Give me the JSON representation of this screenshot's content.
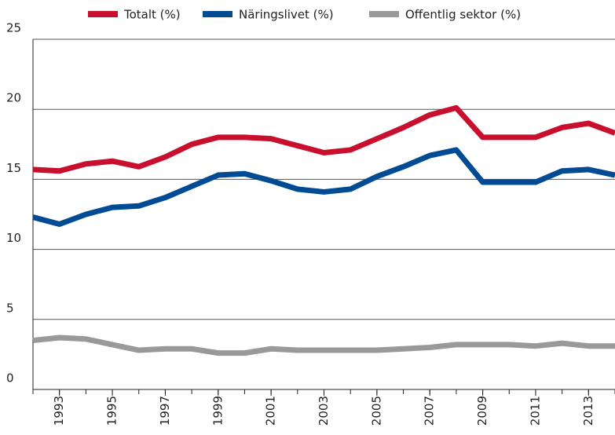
{
  "chart_data": {
    "type": "line",
    "x": [
      1992,
      1993,
      1994,
      1995,
      1996,
      1997,
      1998,
      1999,
      2000,
      2001,
      2002,
      2003,
      2004,
      2005,
      2006,
      2007,
      2008,
      2009,
      2010,
      2011,
      2012,
      2013,
      2014
    ],
    "series": [
      {
        "name": "Totalt (%)",
        "color": "#c8102e",
        "values": [
          15.7,
          15.6,
          16.1,
          16.3,
          15.9,
          16.6,
          17.5,
          18.0,
          18.0,
          17.9,
          17.4,
          16.9,
          17.1,
          17.9,
          18.7,
          19.6,
          20.1,
          18.0,
          18.0,
          18.0,
          18.7,
          19.0,
          18.3
        ]
      },
      {
        "name": "Näringslivet (%)",
        "color": "#004b93",
        "values": [
          12.3,
          11.8,
          12.5,
          13.0,
          13.1,
          13.7,
          14.5,
          15.3,
          15.4,
          14.9,
          14.3,
          14.1,
          14.3,
          15.2,
          15.9,
          16.7,
          17.1,
          14.8,
          14.8,
          14.8,
          15.6,
          15.7,
          15.3
        ]
      },
      {
        "name": "Offentlig sektor (%)",
        "color": "#999999",
        "values": [
          3.5,
          3.7,
          3.6,
          3.2,
          2.8,
          2.9,
          2.9,
          2.6,
          2.6,
          2.9,
          2.8,
          2.8,
          2.8,
          2.8,
          2.9,
          3.0,
          3.2,
          3.2,
          3.2,
          3.1,
          3.3,
          3.1,
          3.1
        ]
      }
    ],
    "xlim": [
      1992,
      2014
    ],
    "xticks": [
      1993,
      1995,
      1997,
      1999,
      2001,
      2003,
      2005,
      2007,
      2009,
      2011,
      2013
    ],
    "ylim": [
      0,
      25
    ],
    "yticks": [
      0,
      5,
      10,
      15,
      20,
      25
    ],
    "grid": true,
    "legend": "top"
  }
}
